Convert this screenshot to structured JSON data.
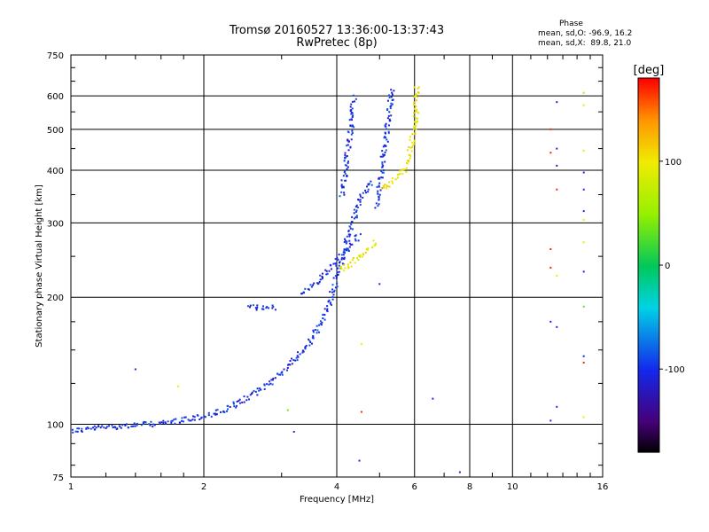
{
  "header": {
    "title_line1": "Tromsø 20160527 13:36:00-13:37:43",
    "title_line2": "RwPretec (8p)"
  },
  "stats": {
    "heading": "Phase",
    "o_line": "mean, sd,O: -96.9, 16.2",
    "x_line": "mean, sd,X:  89.8, 21.0"
  },
  "colorbar": {
    "unit_label": "[deg]",
    "ticks": [
      100,
      0,
      -100
    ],
    "range": [
      -180,
      180
    ]
  },
  "chart_data": {
    "type": "scatter",
    "xlabel": "Frequency [MHz]",
    "ylabel": "Stationary phase Virtual Height [km]",
    "xscale": "log",
    "yscale": "log",
    "xlim": [
      1,
      16
    ],
    "ylim": [
      75,
      750
    ],
    "xticks": [
      1,
      2,
      4,
      6,
      8,
      10,
      16
    ],
    "yticks": [
      75,
      100,
      200,
      300,
      400,
      500,
      600,
      750
    ],
    "grid": true,
    "color_by": "phase (deg)",
    "trace_segments": [
      {
        "phase": -100,
        "points": [
          [
            1.0,
            97
          ],
          [
            1.2,
            99
          ],
          [
            1.4,
            100
          ],
          [
            1.6,
            101
          ],
          [
            1.8,
            103
          ],
          [
            2.0,
            105
          ],
          [
            2.2,
            108
          ],
          [
            2.4,
            113
          ],
          [
            2.6,
            119
          ],
          [
            2.8,
            126
          ],
          [
            3.0,
            134
          ],
          [
            3.2,
            143
          ],
          [
            3.5,
            160
          ],
          [
            3.8,
            190
          ],
          [
            4.0,
            225
          ],
          [
            4.2,
            270
          ],
          [
            4.4,
            320
          ],
          [
            4.6,
            360
          ],
          [
            4.8,
            380
          ]
        ]
      },
      {
        "phase": -100,
        "points": [
          [
            2.5,
            192
          ],
          [
            2.6,
            190
          ],
          [
            2.8,
            189
          ],
          [
            2.9,
            190
          ]
        ]
      },
      {
        "phase": -100,
        "points": [
          [
            3.3,
            205
          ],
          [
            3.6,
            218
          ],
          [
            3.9,
            240
          ],
          [
            4.2,
            262
          ],
          [
            4.5,
            282
          ]
        ]
      },
      {
        "phase": -100,
        "points": [
          [
            4.1,
            350
          ],
          [
            4.2,
            430
          ],
          [
            4.3,
            520
          ],
          [
            4.35,
            600
          ]
        ]
      },
      {
        "phase": -100,
        "points": [
          [
            4.9,
            330
          ],
          [
            5.0,
            380
          ],
          [
            5.1,
            440
          ],
          [
            5.2,
            520
          ],
          [
            5.3,
            630
          ]
        ]
      },
      {
        "phase": 100,
        "points": [
          [
            4.05,
            235
          ],
          [
            4.3,
            240
          ],
          [
            4.6,
            258
          ],
          [
            4.9,
            272
          ]
        ]
      },
      {
        "phase": 100,
        "points": [
          [
            5.0,
            360
          ],
          [
            5.3,
            375
          ],
          [
            5.6,
            395
          ],
          [
            5.8,
            430
          ],
          [
            6.0,
            520
          ],
          [
            6.05,
            640
          ]
        ]
      }
    ],
    "scattered_points": [
      {
        "x": 1.4,
        "y": 135,
        "phase": -100
      },
      {
        "x": 1.75,
        "y": 123,
        "phase": 100
      },
      {
        "x": 3.1,
        "y": 108,
        "phase": 40
      },
      {
        "x": 3.2,
        "y": 96,
        "phase": -100
      },
      {
        "x": 4.5,
        "y": 82,
        "phase": -100
      },
      {
        "x": 4.55,
        "y": 155,
        "phase": 100
      },
      {
        "x": 4.55,
        "y": 107,
        "phase": 170
      },
      {
        "x": 5.0,
        "y": 215,
        "phase": -100
      },
      {
        "x": 6.6,
        "y": 115,
        "phase": -100
      },
      {
        "x": 7.6,
        "y": 77,
        "phase": -100
      },
      {
        "x": 12.2,
        "y": 500,
        "phase": 170
      },
      {
        "x": 12.2,
        "y": 440,
        "phase": 170
      },
      {
        "x": 12.2,
        "y": 260,
        "phase": 170
      },
      {
        "x": 12.2,
        "y": 235,
        "phase": 170
      },
      {
        "x": 12.2,
        "y": 175,
        "phase": -100
      },
      {
        "x": 12.2,
        "y": 102,
        "phase": -100
      },
      {
        "x": 12.6,
        "y": 580,
        "phase": -100
      },
      {
        "x": 12.6,
        "y": 450,
        "phase": -100
      },
      {
        "x": 12.6,
        "y": 410,
        "phase": -120
      },
      {
        "x": 12.6,
        "y": 360,
        "phase": 170
      },
      {
        "x": 12.6,
        "y": 225,
        "phase": 100
      },
      {
        "x": 12.6,
        "y": 170,
        "phase": -100
      },
      {
        "x": 12.6,
        "y": 110,
        "phase": -100
      },
      {
        "x": 14.5,
        "y": 610,
        "phase": 60
      },
      {
        "x": 14.5,
        "y": 570,
        "phase": 100
      },
      {
        "x": 14.5,
        "y": 445,
        "phase": 100
      },
      {
        "x": 14.5,
        "y": 395,
        "phase": -100
      },
      {
        "x": 14.5,
        "y": 360,
        "phase": -100
      },
      {
        "x": 14.5,
        "y": 320,
        "phase": -100
      },
      {
        "x": 14.5,
        "y": 305,
        "phase": 100
      },
      {
        "x": 14.5,
        "y": 270,
        "phase": 100
      },
      {
        "x": 14.5,
        "y": 230,
        "phase": -100
      },
      {
        "x": 14.5,
        "y": 190,
        "phase": 30
      },
      {
        "x": 14.5,
        "y": 145,
        "phase": -100
      },
      {
        "x": 14.5,
        "y": 140,
        "phase": 170
      },
      {
        "x": 14.5,
        "y": 104,
        "phase": 100
      }
    ]
  }
}
